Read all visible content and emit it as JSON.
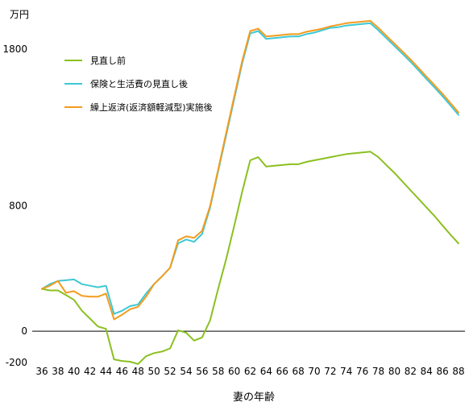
{
  "chart_data": {
    "type": "line",
    "unit_label": "万円",
    "xlabel": "妻の年齢",
    "ylabel": "",
    "title": "",
    "ylim": [
      -200,
      2000
    ],
    "y_ticks": [
      -200,
      0,
      800,
      1800
    ],
    "x_ticks": [
      36,
      38,
      40,
      42,
      44,
      46,
      48,
      50,
      52,
      54,
      56,
      58,
      60,
      62,
      64,
      66,
      68,
      70,
      72,
      74,
      76,
      78,
      80,
      82,
      84,
      86,
      88
    ],
    "legend_position": "top-left",
    "series": [
      {
        "name": "見直し前",
        "color": "#8bc020",
        "points": [
          [
            36,
            270
          ],
          [
            37,
            260
          ],
          [
            38,
            260
          ],
          [
            39,
            230
          ],
          [
            40,
            200
          ],
          [
            41,
            130
          ],
          [
            42,
            80
          ],
          [
            43,
            30
          ],
          [
            44,
            15
          ],
          [
            45,
            -180
          ],
          [
            46,
            -190
          ],
          [
            47,
            -195
          ],
          [
            48,
            -210
          ],
          [
            49,
            -160
          ],
          [
            50,
            -140
          ],
          [
            51,
            -130
          ],
          [
            52,
            -110
          ],
          [
            53,
            5
          ],
          [
            54,
            -10
          ],
          [
            55,
            -60
          ],
          [
            56,
            -40
          ],
          [
            57,
            70
          ],
          [
            58,
            270
          ],
          [
            59,
            460
          ],
          [
            60,
            670
          ],
          [
            61,
            890
          ],
          [
            62,
            1090
          ],
          [
            63,
            1110
          ],
          [
            64,
            1050
          ],
          [
            65,
            1055
          ],
          [
            66,
            1060
          ],
          [
            67,
            1065
          ],
          [
            68,
            1065
          ],
          [
            69,
            1080
          ],
          [
            70,
            1090
          ],
          [
            71,
            1100
          ],
          [
            72,
            1110
          ],
          [
            73,
            1120
          ],
          [
            74,
            1130
          ],
          [
            75,
            1135
          ],
          [
            76,
            1140
          ],
          [
            77,
            1145
          ],
          [
            78,
            1110
          ],
          [
            79,
            1060
          ],
          [
            80,
            1010
          ],
          [
            81,
            955
          ],
          [
            82,
            900
          ],
          [
            83,
            845
          ],
          [
            84,
            790
          ],
          [
            85,
            735
          ],
          [
            86,
            675
          ],
          [
            87,
            615
          ],
          [
            88,
            560
          ]
        ]
      },
      {
        "name": "保険と生活費の見直し後",
        "color": "#3ec8d6",
        "points": [
          [
            36,
            270
          ],
          [
            37,
            300
          ],
          [
            38,
            320
          ],
          [
            39,
            325
          ],
          [
            40,
            330
          ],
          [
            41,
            300
          ],
          [
            42,
            290
          ],
          [
            43,
            280
          ],
          [
            44,
            290
          ],
          [
            45,
            110
          ],
          [
            46,
            130
          ],
          [
            47,
            160
          ],
          [
            48,
            170
          ],
          [
            49,
            240
          ],
          [
            50,
            300
          ],
          [
            51,
            350
          ],
          [
            52,
            405
          ],
          [
            53,
            560
          ],
          [
            54,
            585
          ],
          [
            55,
            570
          ],
          [
            56,
            620
          ],
          [
            57,
            790
          ],
          [
            58,
            1020
          ],
          [
            59,
            1250
          ],
          [
            60,
            1480
          ],
          [
            61,
            1710
          ],
          [
            62,
            1900
          ],
          [
            63,
            1915
          ],
          [
            64,
            1865
          ],
          [
            65,
            1870
          ],
          [
            66,
            1875
          ],
          [
            67,
            1880
          ],
          [
            68,
            1880
          ],
          [
            69,
            1895
          ],
          [
            70,
            1905
          ],
          [
            71,
            1920
          ],
          [
            72,
            1935
          ],
          [
            73,
            1940
          ],
          [
            74,
            1950
          ],
          [
            75,
            1955
          ],
          [
            76,
            1960
          ],
          [
            77,
            1965
          ],
          [
            78,
            1920
          ],
          [
            79,
            1870
          ],
          [
            80,
            1820
          ],
          [
            81,
            1770
          ],
          [
            82,
            1720
          ],
          [
            83,
            1665
          ],
          [
            84,
            1610
          ],
          [
            85,
            1555
          ],
          [
            86,
            1500
          ],
          [
            87,
            1440
          ],
          [
            88,
            1380
          ]
        ]
      },
      {
        "name": "繰上返済(返済額軽減型)実施後",
        "color": "#f39c1e",
        "points": [
          [
            36,
            270
          ],
          [
            37,
            290
          ],
          [
            38,
            320
          ],
          [
            39,
            245
          ],
          [
            40,
            255
          ],
          [
            41,
            225
          ],
          [
            42,
            220
          ],
          [
            43,
            220
          ],
          [
            44,
            240
          ],
          [
            45,
            75
          ],
          [
            46,
            105
          ],
          [
            47,
            140
          ],
          [
            48,
            155
          ],
          [
            49,
            220
          ],
          [
            50,
            300
          ],
          [
            51,
            350
          ],
          [
            52,
            405
          ],
          [
            53,
            580
          ],
          [
            54,
            605
          ],
          [
            55,
            595
          ],
          [
            56,
            640
          ],
          [
            57,
            800
          ],
          [
            58,
            1030
          ],
          [
            59,
            1265
          ],
          [
            60,
            1495
          ],
          [
            61,
            1725
          ],
          [
            62,
            1915
          ],
          [
            63,
            1930
          ],
          [
            64,
            1880
          ],
          [
            65,
            1885
          ],
          [
            66,
            1890
          ],
          [
            67,
            1895
          ],
          [
            68,
            1895
          ],
          [
            69,
            1910
          ],
          [
            70,
            1920
          ],
          [
            71,
            1930
          ],
          [
            72,
            1945
          ],
          [
            73,
            1955
          ],
          [
            74,
            1965
          ],
          [
            75,
            1970
          ],
          [
            76,
            1975
          ],
          [
            77,
            1980
          ],
          [
            78,
            1935
          ],
          [
            79,
            1885
          ],
          [
            80,
            1835
          ],
          [
            81,
            1785
          ],
          [
            82,
            1735
          ],
          [
            83,
            1680
          ],
          [
            84,
            1625
          ],
          [
            85,
            1570
          ],
          [
            86,
            1515
          ],
          [
            87,
            1455
          ],
          [
            88,
            1395
          ]
        ]
      }
    ]
  }
}
